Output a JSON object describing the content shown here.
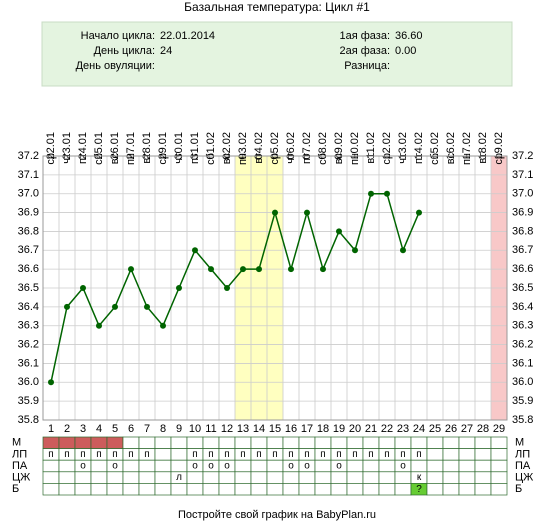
{
  "chart_data": {
    "type": "line",
    "title": "Базальная температура: Цикл #1",
    "info_left": [
      {
        "label": "Начало цикла:",
        "value": "22.01.2014"
      },
      {
        "label": "День цикла:",
        "value": "24"
      },
      {
        "label": "День овуляции:",
        "value": null
      }
    ],
    "info_right": [
      {
        "label": "1ая фаза:",
        "value": "36.60"
      },
      {
        "label": "2ая фаза:",
        "value": "0.00"
      },
      {
        "label": "Разница:",
        "value": null
      }
    ],
    "x": [
      1,
      2,
      3,
      4,
      5,
      6,
      7,
      8,
      9,
      10,
      11,
      12,
      13,
      14,
      15,
      16,
      17,
      18,
      19,
      20,
      21,
      22,
      23,
      24,
      25,
      26,
      27,
      28,
      29
    ],
    "dates": [
      "22.01",
      "23.01",
      "24.01",
      "25.01",
      "26.01",
      "27.01",
      "28.01",
      "29.01",
      "30.01",
      "31.01",
      "01.02",
      "02.02",
      "03.02",
      "04.02",
      "05.02",
      "06.02",
      "07.02",
      "08.02",
      "09.02",
      "10.02",
      "11.02",
      "12.02",
      "13.02",
      "14.02",
      "15.02",
      "16.02",
      "17.02",
      "18.02",
      "19.02"
    ],
    "weekdays": [
      "ср",
      "чт",
      "пт",
      "сб",
      "вс",
      "пн",
      "вт",
      "ср",
      "чт",
      "пт",
      "сб",
      "вс",
      "пн",
      "вт",
      "ср",
      "чт",
      "пт",
      "сб",
      "вс",
      "пн",
      "вт",
      "ср",
      "чт",
      "пт",
      "сб",
      "вс",
      "пн",
      "вт",
      "ср"
    ],
    "series": [
      {
        "color": "#006400",
        "values": [
          36.0,
          36.4,
          36.5,
          36.3,
          36.4,
          36.6,
          36.4,
          36.3,
          36.5,
          36.7,
          36.6,
          36.5,
          36.6,
          36.6,
          36.9,
          36.6,
          36.9,
          36.6,
          36.8,
          36.7,
          37.0,
          37.0,
          36.7,
          36.9,
          null,
          null,
          null,
          null,
          null
        ]
      }
    ],
    "xlim": [
      0.5,
      29.5
    ],
    "ylim": [
      35.8,
      37.2
    ],
    "yticks": [
      35.8,
      35.9,
      {
        "value": 36.0,
        "label": "36.0"
      },
      36.1,
      36.2,
      36.3,
      36.4,
      36.5,
      36.6,
      36.7,
      36.8,
      36.9,
      {
        "value": 37.0,
        "label": "37.0"
      },
      37.1,
      37.2
    ],
    "grid": true,
    "highlights": [
      {
        "from": 13,
        "to": 15,
        "color": "#ffffc0"
      },
      {
        "from": 29,
        "to": 29,
        "color": "#f8c8c8"
      }
    ],
    "rows": [
      {
        "label": "М",
        "fill": "#cd5c5c",
        "filled": [
          1,
          2,
          3,
          4,
          5
        ],
        "cells": []
      },
      {
        "label": "ЛП",
        "cells": [
          "п",
          "п",
          "п",
          "п",
          "п",
          "п",
          "п",
          null,
          null,
          "п",
          "п",
          "п",
          "п",
          "п",
          "п",
          "п",
          "п",
          "п",
          "п",
          "п",
          "п",
          "п",
          "п",
          "п"
        ]
      },
      {
        "label": "ПА",
        "cells": [
          null,
          null,
          "о",
          null,
          "о",
          null,
          null,
          null,
          null,
          "о",
          "о",
          "о",
          null,
          null,
          null,
          "о",
          "о",
          null,
          "о",
          null,
          null,
          null,
          "о"
        ]
      },
      {
        "label": "ЦЖ",
        "cells": [
          null,
          null,
          null,
          null,
          null,
          null,
          null,
          null,
          "л",
          null,
          null,
          null,
          null,
          null,
          null,
          null,
          null,
          null,
          null,
          null,
          null,
          null,
          null,
          "к"
        ]
      },
      {
        "label": "Б",
        "fill": "#66cc33",
        "filled": [
          24
        ],
        "cells": [
          null,
          null,
          null,
          null,
          null,
          null,
          null,
          null,
          null,
          null,
          null,
          null,
          null,
          null,
          null,
          null,
          null,
          null,
          null,
          null,
          null,
          null,
          null,
          "?"
        ]
      }
    ],
    "footer": "Постройте свой график на BabyPlan.ru"
  }
}
